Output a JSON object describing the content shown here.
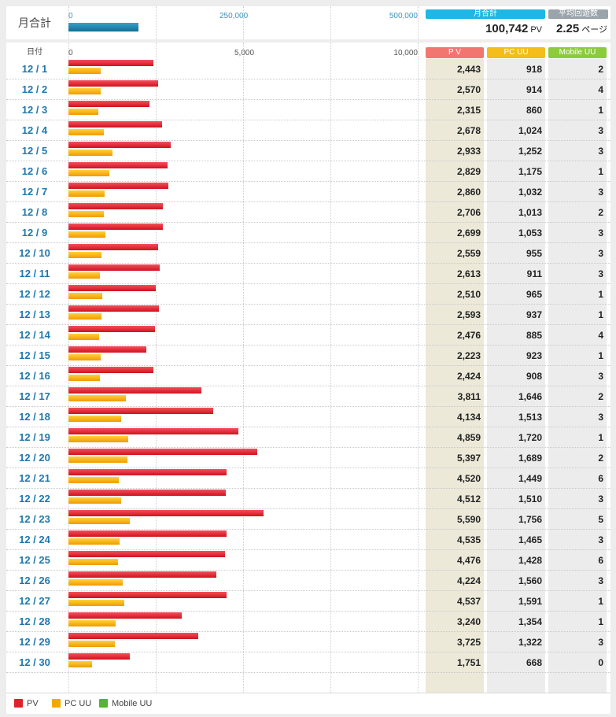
{
  "summary": {
    "label": "月合計",
    "axis_ticks": [
      "0",
      "250,000",
      "500,000"
    ],
    "axis_max": 500000,
    "total_header": "月合計",
    "total_value": "100,742",
    "total_unit": "PV",
    "total_numeric": 100742,
    "avg_header": "平均回遊数",
    "avg_value": "2.25",
    "avg_unit": "ページ"
  },
  "table": {
    "date_header": "日付",
    "axis_ticks": [
      "0",
      "5,000",
      "10,000"
    ],
    "col_pv": "P V",
    "col_pc": "PC UU",
    "col_mobile": "Mobile UU"
  },
  "legend": {
    "pv": "PV",
    "pc": "PC UU",
    "mobile": "Mobile UU"
  },
  "colors": {
    "pv": "#e0202c",
    "pc": "#f6a800",
    "mobile": "#55b52c",
    "date_text": "#1f78ad",
    "summary_bar": "#1a7fa8"
  },
  "chart_data": {
    "type": "bar",
    "orientation": "horizontal",
    "xlim": [
      0,
      10000
    ],
    "categories": [
      "12 / 1",
      "12 / 2",
      "12 / 3",
      "12 / 4",
      "12 / 5",
      "12 / 6",
      "12 / 7",
      "12 / 8",
      "12 / 9",
      "12 / 10",
      "12 / 11",
      "12 / 12",
      "12 / 13",
      "12 / 14",
      "12 / 15",
      "12 / 16",
      "12 / 17",
      "12 / 18",
      "12 / 19",
      "12 / 20",
      "12 / 21",
      "12 / 22",
      "12 / 23",
      "12 / 24",
      "12 / 25",
      "12 / 26",
      "12 / 27",
      "12 / 28",
      "12 / 29",
      "12 / 30"
    ],
    "series": [
      {
        "name": "PV",
        "values": [
          2443,
          2570,
          2315,
          2678,
          2933,
          2829,
          2860,
          2706,
          2699,
          2559,
          2613,
          2510,
          2593,
          2476,
          2223,
          2424,
          3811,
          4134,
          4859,
          5397,
          4520,
          4512,
          5590,
          4535,
          4476,
          4224,
          4537,
          3240,
          3725,
          1751
        ]
      },
      {
        "name": "PC UU",
        "values": [
          918,
          914,
          860,
          1024,
          1252,
          1175,
          1032,
          1013,
          1053,
          955,
          911,
          965,
          937,
          885,
          923,
          908,
          1646,
          1513,
          1720,
          1689,
          1449,
          1510,
          1756,
          1465,
          1428,
          1560,
          1591,
          1354,
          1322,
          668
        ]
      },
      {
        "name": "Mobile UU",
        "values": [
          2,
          4,
          1,
          3,
          3,
          1,
          3,
          2,
          3,
          3,
          3,
          1,
          1,
          4,
          1,
          3,
          2,
          3,
          1,
          2,
          6,
          3,
          5,
          3,
          6,
          3,
          1,
          1,
          3,
          0
        ]
      }
    ],
    "grid": true,
    "legend": "bottom-left"
  }
}
